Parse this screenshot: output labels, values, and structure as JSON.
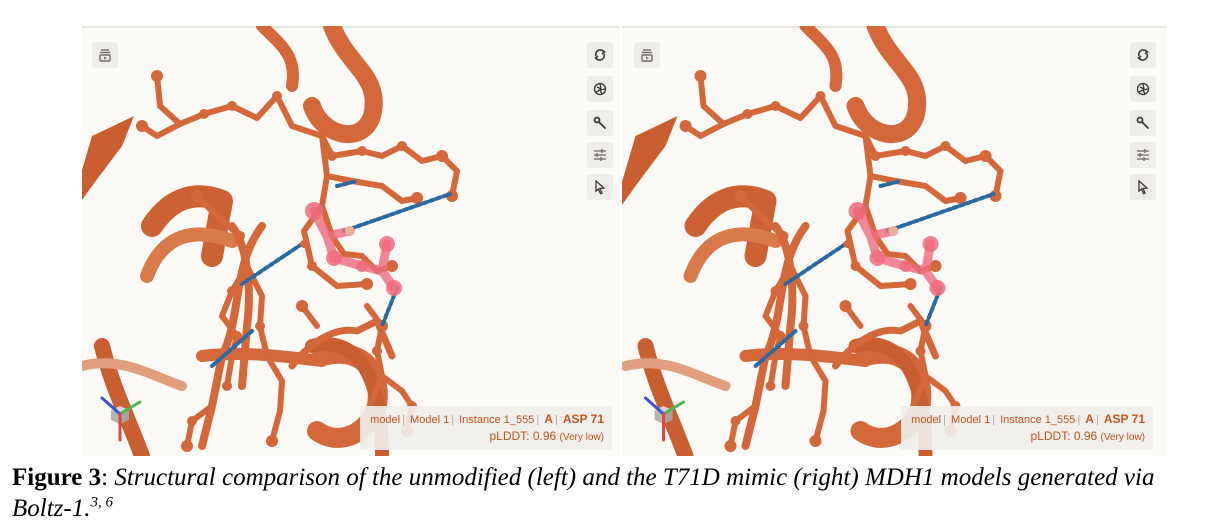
{
  "panels": [
    {
      "id": "left",
      "info": {
        "model": "model",
        "model_name": "Model 1",
        "instance": "Instance 1_555",
        "chain": "A",
        "residue": "ASP 71",
        "plddt_label": "pLDDT: 0.96",
        "plddt_quality": "(Very low)"
      }
    },
    {
      "id": "right",
      "info": {
        "model": "model",
        "model_name": "Model 1",
        "instance": "Instance 1_555",
        "chain": "A",
        "residue": "ASP 71",
        "plddt_label": "pLDDT: 0.96",
        "plddt_quality": "(Very low)"
      }
    }
  ],
  "toolbar_icons": [
    "screenshot-icon",
    "reset-view-icon",
    "illumination-icon",
    "settings-wrench-icon",
    "controls-sliders-icon",
    "selection-cursor-icon"
  ],
  "colors": {
    "structure": "#d4683a",
    "highlight": "#ef6b7e",
    "hbond": "#2a6aa0",
    "background": "#fbfaf7"
  },
  "caption": {
    "label": "Figure 3",
    "colon": ":",
    "text": "Structural comparison of the unmodified (left) and the T71D mimic (right) MDH1 models generated via Boltz-1.",
    "refs": "3, 6"
  }
}
